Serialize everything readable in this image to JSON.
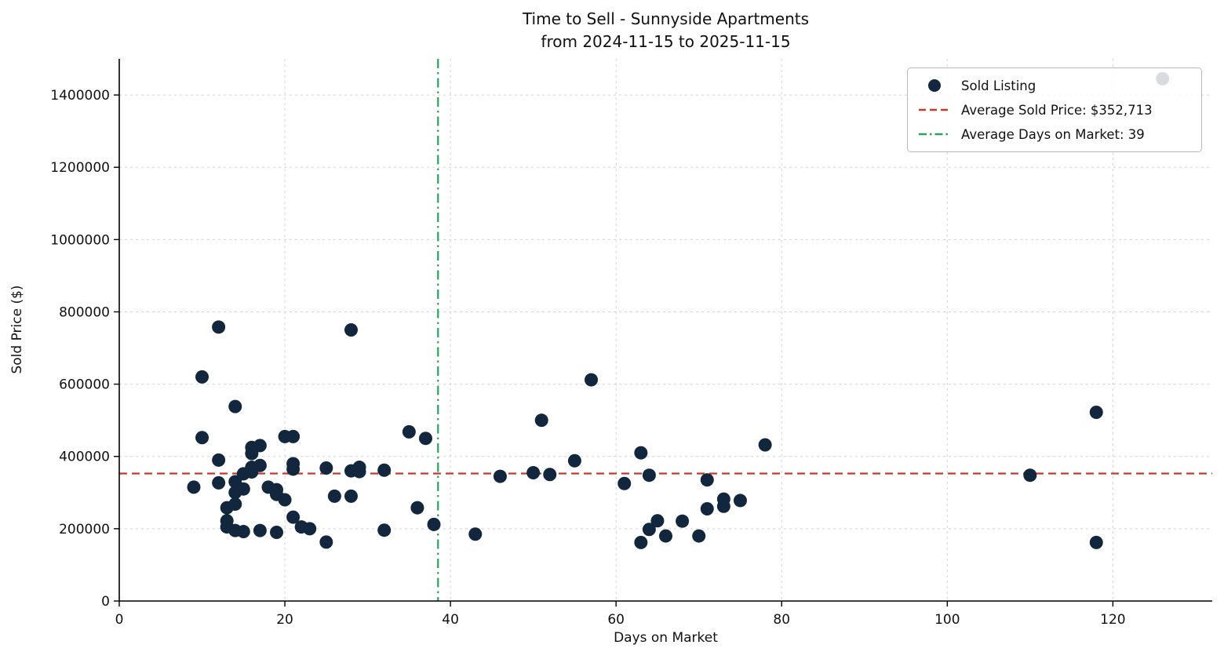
{
  "chart_data": {
    "type": "scatter",
    "title": "Time to Sell - Sunnyside Apartments",
    "subtitle": "from 2024-11-15 to 2025-11-15",
    "xlabel": "Days on Market",
    "ylabel": "Sold Price ($)",
    "xlim": [
      0,
      132
    ],
    "ylim": [
      0,
      1500000
    ],
    "xticks": [
      0,
      20,
      40,
      60,
      80,
      100,
      120
    ],
    "xtick_labels": [
      "0",
      "20",
      "40",
      "60",
      "80",
      "100",
      "120"
    ],
    "yticks": [
      0,
      200000,
      400000,
      600000,
      800000,
      1000000,
      1200000,
      1400000
    ],
    "ytick_labels": [
      "0",
      "200000",
      "400000",
      "600000",
      "800000",
      "1000000",
      "1200000",
      "1400000"
    ],
    "grid": true,
    "legend_position": "upper right",
    "colors": {
      "marker": "#12263e",
      "avg_price": "#c23b2e",
      "avg_days": "#27a35f",
      "grid": "#d3d3d3",
      "spine": "#000000"
    },
    "avg_price_line": {
      "label": "Average Sold Price: $352,713",
      "value": 352713,
      "color": "#c23b2e"
    },
    "avg_days_line": {
      "label": "Average Days on Market: 39",
      "value": 38.5,
      "color": "#27a35f"
    },
    "legend": {
      "items": [
        {
          "label": "Sold Listing",
          "marker": "dot",
          "color": "#12263e"
        },
        {
          "label": "Average Sold Price: $352,713",
          "marker": "dashed-line",
          "color": "#c23b2e"
        },
        {
          "label": "Average Days on Market: 39",
          "marker": "dashdot-line",
          "color": "#27a35f"
        }
      ]
    },
    "series": [
      {
        "name": "Sold Listing",
        "type": "scatter",
        "color": "#12263e",
        "points": [
          [
            10,
            620000
          ],
          [
            10,
            452000
          ],
          [
            9,
            315000
          ],
          [
            12,
            758000
          ],
          [
            12,
            390000
          ],
          [
            12,
            327000
          ],
          [
            14,
            538000
          ],
          [
            13,
            258000
          ],
          [
            13,
            222000
          ],
          [
            13,
            205000
          ],
          [
            14,
            330000
          ],
          [
            14,
            300000
          ],
          [
            14,
            268000
          ],
          [
            15,
            352000
          ],
          [
            15,
            310000
          ],
          [
            14,
            195000
          ],
          [
            16,
            425000
          ],
          [
            16,
            408000
          ],
          [
            16,
            370000
          ],
          [
            16,
            357000
          ],
          [
            15,
            192000
          ],
          [
            17,
            430000
          ],
          [
            17,
            375000
          ],
          [
            17,
            195000
          ],
          [
            18,
            315000
          ],
          [
            19,
            308000
          ],
          [
            19,
            295000
          ],
          [
            19,
            190000
          ],
          [
            20,
            455000
          ],
          [
            20,
            280000
          ],
          [
            21,
            455000
          ],
          [
            21,
            380000
          ],
          [
            21,
            365000
          ],
          [
            21,
            232000
          ],
          [
            22,
            205000
          ],
          [
            23,
            200000
          ],
          [
            25,
            368000
          ],
          [
            25,
            163000
          ],
          [
            26,
            290000
          ],
          [
            28,
            750000
          ],
          [
            28,
            360000
          ],
          [
            28,
            290000
          ],
          [
            29,
            370000
          ],
          [
            29,
            358000
          ],
          [
            32,
            362000
          ],
          [
            32,
            196000
          ],
          [
            35,
            468000
          ],
          [
            36,
            258000
          ],
          [
            37,
            450000
          ],
          [
            38,
            212000
          ],
          [
            43,
            185000
          ],
          [
            46,
            345000
          ],
          [
            50,
            355000
          ],
          [
            51,
            500000
          ],
          [
            52,
            350000
          ],
          [
            55,
            388000
          ],
          [
            57,
            612000
          ],
          [
            61,
            325000
          ],
          [
            63,
            410000
          ],
          [
            63,
            162000
          ],
          [
            64,
            348000
          ],
          [
            64,
            198000
          ],
          [
            65,
            222000
          ],
          [
            66,
            180000
          ],
          [
            68,
            221000
          ],
          [
            70,
            180000
          ],
          [
            71,
            335000
          ],
          [
            71,
            255000
          ],
          [
            73,
            282000
          ],
          [
            73,
            262000
          ],
          [
            75,
            278000
          ],
          [
            78,
            432000
          ],
          [
            110,
            348000
          ],
          [
            118,
            522000
          ],
          [
            118,
            162000
          ],
          [
            126,
            1445000
          ]
        ]
      }
    ]
  }
}
